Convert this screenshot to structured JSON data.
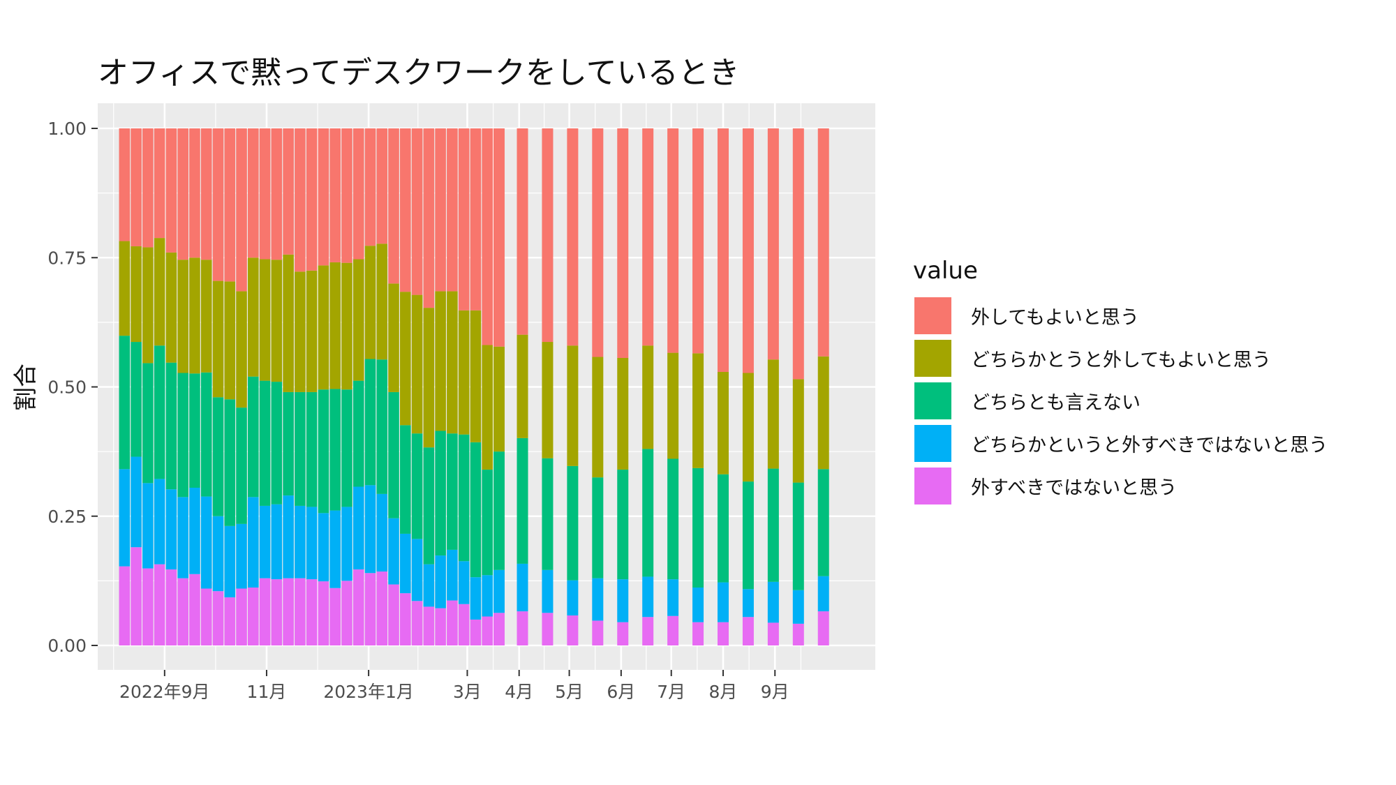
{
  "chart_data": {
    "type": "bar",
    "stacked": true,
    "title": "オフィスで黙ってデスクワークをしているとき",
    "xlabel": "",
    "ylabel": "割合",
    "ylim": [
      0,
      1
    ],
    "yticks": [
      "0.00",
      "0.25",
      "0.50",
      "0.75",
      "1.00"
    ],
    "xticks": [
      {
        "label": "2022年9月",
        "date": "2022-09-01"
      },
      {
        "label": "11月",
        "date": "2022-11-01"
      },
      {
        "label": "2023年1月",
        "date": "2023-01-01"
      },
      {
        "label": "3月",
        "date": "2023-03-01"
      },
      {
        "label": "4月",
        "date": "2023-04-01"
      },
      {
        "label": "5月",
        "date": "2023-05-01"
      },
      {
        "label": "6月",
        "date": "2023-06-01"
      },
      {
        "label": "7月",
        "date": "2023-07-01"
      },
      {
        "label": "8月",
        "date": "2023-08-01"
      },
      {
        "label": "9月",
        "date": "2023-09-01"
      }
    ],
    "xlim": [
      "2022-07-23",
      "2023-10-31"
    ],
    "legend_title": "value",
    "legend_position": "right",
    "grid": true,
    "colors": {
      "外してもよいと思う": "#F8766D",
      "どちらかとうと外してもよいと思う": "#A3A500",
      "どちらとも言えない": "#00BF7D",
      "どちらかというと外すべきではないと思う": "#00B0F6",
      "外すべきではないと思う": "#E76BF3"
    },
    "legend": [
      "外してもよいと思う",
      "どちらかとうと外してもよいと思う",
      "どちらとも言えない",
      "どちらかというと外すべきではないと思う",
      "外すべきではないと思う"
    ],
    "stack_order_bottom_to_top": [
      "外すべきではないと思う",
      "どちらかというと外すべきではないと思う",
      "どちらとも言えない",
      "どちらかとうと外してもよいと思う",
      "外してもよいと思う"
    ],
    "x": [
      "2022-08-08",
      "2022-08-15",
      "2022-08-22",
      "2022-08-29",
      "2022-09-05",
      "2022-09-12",
      "2022-09-19",
      "2022-09-26",
      "2022-10-03",
      "2022-10-10",
      "2022-10-17",
      "2022-10-24",
      "2022-10-31",
      "2022-11-07",
      "2022-11-14",
      "2022-11-21",
      "2022-11-28",
      "2022-12-05",
      "2022-12-12",
      "2022-12-19",
      "2022-12-26",
      "2023-01-02",
      "2023-01-09",
      "2023-01-16",
      "2023-01-23",
      "2023-01-30",
      "2023-02-06",
      "2023-02-13",
      "2023-02-20",
      "2023-02-27",
      "2023-03-06",
      "2023-03-13",
      "2023-03-20",
      "2023-04-03",
      "2023-04-18",
      "2023-05-03",
      "2023-05-18",
      "2023-06-02",
      "2023-06-17",
      "2023-07-02",
      "2023-07-17",
      "2023-08-01",
      "2023-08-16",
      "2023-08-31",
      "2023-09-15",
      "2023-09-30"
    ],
    "series": [
      {
        "name": "外すべきではないと思う",
        "values": [
          0.153,
          0.19,
          0.149,
          0.157,
          0.147,
          0.13,
          0.138,
          0.11,
          0.105,
          0.093,
          0.11,
          0.112,
          0.13,
          0.128,
          0.13,
          0.13,
          0.128,
          0.124,
          0.111,
          0.125,
          0.147,
          0.14,
          0.143,
          0.118,
          0.101,
          0.086,
          0.075,
          0.072,
          0.087,
          0.08,
          0.05,
          0.056,
          0.063,
          0.066,
          0.063,
          0.058,
          0.048,
          0.045,
          0.055,
          0.057,
          0.045,
          0.045,
          0.055,
          0.044,
          0.042,
          0.066
        ]
      },
      {
        "name": "どちらかというと外すべきではないと思う",
        "values": [
          0.188,
          0.175,
          0.165,
          0.165,
          0.155,
          0.157,
          0.167,
          0.178,
          0.145,
          0.138,
          0.125,
          0.175,
          0.14,
          0.145,
          0.16,
          0.14,
          0.14,
          0.132,
          0.15,
          0.143,
          0.16,
          0.17,
          0.15,
          0.128,
          0.115,
          0.12,
          0.082,
          0.102,
          0.098,
          0.083,
          0.082,
          0.08,
          0.083,
          0.092,
          0.083,
          0.068,
          0.082,
          0.083,
          0.078,
          0.071,
          0.067,
          0.077,
          0.054,
          0.079,
          0.065,
          0.068
        ]
      },
      {
        "name": "どちらとも言えない",
        "values": [
          0.258,
          0.222,
          0.232,
          0.258,
          0.245,
          0.24,
          0.221,
          0.24,
          0.23,
          0.245,
          0.225,
          0.233,
          0.242,
          0.237,
          0.2,
          0.22,
          0.222,
          0.239,
          0.235,
          0.227,
          0.205,
          0.244,
          0.26,
          0.244,
          0.21,
          0.204,
          0.226,
          0.241,
          0.225,
          0.245,
          0.261,
          0.204,
          0.229,
          0.243,
          0.216,
          0.221,
          0.195,
          0.212,
          0.247,
          0.233,
          0.231,
          0.209,
          0.208,
          0.219,
          0.208,
          0.207
        ]
      },
      {
        "name": "どちらかとうと外してもよいと思う",
        "values": [
          0.183,
          0.185,
          0.224,
          0.208,
          0.213,
          0.219,
          0.224,
          0.218,
          0.225,
          0.228,
          0.225,
          0.23,
          0.235,
          0.236,
          0.266,
          0.233,
          0.235,
          0.24,
          0.245,
          0.245,
          0.235,
          0.219,
          0.224,
          0.21,
          0.258,
          0.268,
          0.27,
          0.27,
          0.275,
          0.24,
          0.255,
          0.241,
          0.203,
          0.2,
          0.225,
          0.233,
          0.233,
          0.216,
          0.2,
          0.205,
          0.222,
          0.198,
          0.21,
          0.211,
          0.2,
          0.218
        ]
      },
      {
        "name": "外してもよいと思う",
        "values": [
          0.218,
          0.228,
          0.23,
          0.212,
          0.24,
          0.254,
          0.25,
          0.254,
          0.295,
          0.296,
          0.315,
          0.25,
          0.253,
          0.254,
          0.244,
          0.277,
          0.275,
          0.265,
          0.259,
          0.26,
          0.253,
          0.227,
          0.223,
          0.3,
          0.316,
          0.322,
          0.347,
          0.315,
          0.315,
          0.352,
          0.352,
          0.419,
          0.422,
          0.399,
          0.413,
          0.42,
          0.442,
          0.444,
          0.42,
          0.434,
          0.435,
          0.471,
          0.473,
          0.447,
          0.485,
          0.441
        ]
      }
    ]
  }
}
